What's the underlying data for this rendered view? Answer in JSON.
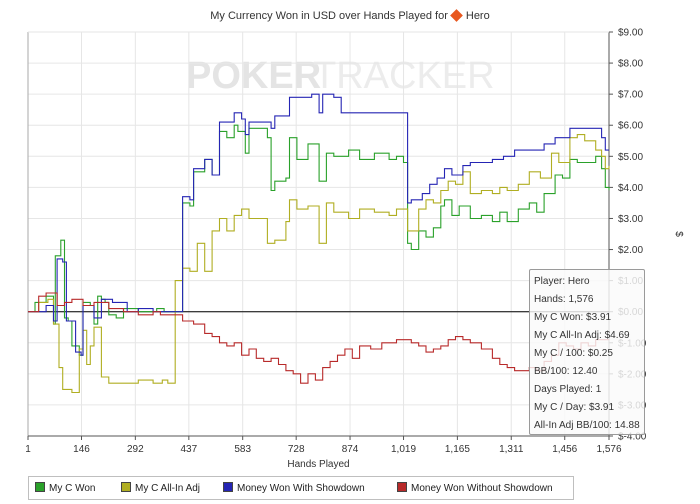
{
  "header": {
    "title_prefix": "My Currency Won in USD over Hands Played for",
    "player": "Hero"
  },
  "watermark": {
    "part1": "POKER",
    "part2": "TRACKER"
  },
  "colors": {
    "my_c_won": "#2aa12a",
    "all_in_adj": "#b0ae22",
    "with_showdown": "#2525b4",
    "without_showdown": "#b82a2a"
  },
  "legend": [
    {
      "label": "My C Won",
      "color": "#2aa12a"
    },
    {
      "label": "My C All-In Adj",
      "color": "#b0ae22"
    },
    {
      "label": "Money Won With Showdown",
      "color": "#2525b4"
    },
    {
      "label": "Money Won Without Showdown",
      "color": "#b82a2a"
    }
  ],
  "tooltip": {
    "lines": [
      "Player: Hero",
      "Hands: 1,576",
      "My C Won: $3.91",
      "My C All-In Adj: $4.69",
      "My C / 100: $0.25",
      "BB/100: 12.40",
      "Days Played: 1",
      "My C / Day: $3.91",
      "All-In Adj BB/100: 14.88"
    ]
  },
  "chart_data": {
    "type": "line",
    "title": "My Currency Won in USD over Hands Played for Hero",
    "xlabel": "Hands Played",
    "ylabel": "$",
    "xlim": [
      1,
      1576
    ],
    "ylim": [
      -4.0,
      9.0
    ],
    "x_ticks": [
      1,
      146,
      292,
      437,
      583,
      728,
      874,
      1019,
      1165,
      1311,
      1456,
      1576
    ],
    "x_tick_labels": [
      "1",
      "146",
      "292",
      "437",
      "583",
      "728",
      "874",
      "1,019",
      "1,165",
      "1,311",
      "1,456",
      "1,576"
    ],
    "y_ticks": [
      9,
      8,
      7,
      6,
      5,
      4,
      3,
      2,
      1,
      0,
      -1,
      -2,
      -3,
      -4
    ],
    "y_tick_labels": [
      "$9.00",
      "$8.00",
      "$7.00",
      "$6.00",
      "$5.00",
      "$4.00",
      "$3.00",
      "$2.00",
      "$1.00",
      "$0.00",
      "$-1.00",
      "$-2.00",
      "$-3.00",
      "$-4.00"
    ],
    "grid": true,
    "legend_position": "bottom",
    "series": [
      {
        "name": "My C Won",
        "color": "#2aa12a",
        "points": [
          [
            1,
            0
          ],
          [
            20,
            0.3
          ],
          [
            50,
            0.5
          ],
          [
            70,
            -0.4
          ],
          [
            75,
            1.8
          ],
          [
            90,
            2.3
          ],
          [
            100,
            -0.2
          ],
          [
            110,
            -0.3
          ],
          [
            120,
            -1.1
          ],
          [
            140,
            -1.4
          ],
          [
            150,
            0.3
          ],
          [
            170,
            0.2
          ],
          [
            180,
            -0.4
          ],
          [
            190,
            0.5
          ],
          [
            200,
            0.4
          ],
          [
            210,
            0.3
          ],
          [
            220,
            -0.1
          ],
          [
            240,
            -0.2
          ],
          [
            260,
            0.1
          ],
          [
            300,
            0
          ],
          [
            340,
            0
          ],
          [
            350,
            0.1
          ],
          [
            370,
            0
          ],
          [
            380,
            0
          ],
          [
            420,
            3.5
          ],
          [
            440,
            3.4
          ],
          [
            450,
            4.5
          ],
          [
            480,
            4.9
          ],
          [
            500,
            4.4
          ],
          [
            520,
            5.8
          ],
          [
            540,
            5.6
          ],
          [
            560,
            6.0
          ],
          [
            570,
            5.8
          ],
          [
            590,
            5.1
          ],
          [
            600,
            5.9
          ],
          [
            650,
            5.6
          ],
          [
            660,
            3.9
          ],
          [
            670,
            4.2
          ],
          [
            700,
            4.3
          ],
          [
            710,
            5.6
          ],
          [
            730,
            4.9
          ],
          [
            760,
            5.4
          ],
          [
            790,
            4.2
          ],
          [
            810,
            5.1
          ],
          [
            830,
            5.0
          ],
          [
            870,
            5.2
          ],
          [
            900,
            4.9
          ],
          [
            940,
            5.1
          ],
          [
            980,
            4.9
          ],
          [
            1000,
            5.0
          ],
          [
            1019,
            4.8
          ],
          [
            1030,
            2.2
          ],
          [
            1040,
            2.0
          ],
          [
            1060,
            2.6
          ],
          [
            1080,
            2.4
          ],
          [
            1100,
            2.7
          ],
          [
            1120,
            3.4
          ],
          [
            1130,
            3.6
          ],
          [
            1150,
            3.1
          ],
          [
            1170,
            3.4
          ],
          [
            1200,
            3.0
          ],
          [
            1230,
            3.1
          ],
          [
            1260,
            2.9
          ],
          [
            1280,
            3.2
          ],
          [
            1300,
            2.9
          ],
          [
            1330,
            3.3
          ],
          [
            1360,
            3.5
          ],
          [
            1380,
            3.2
          ],
          [
            1400,
            3.8
          ],
          [
            1430,
            4.4
          ],
          [
            1450,
            4.3
          ],
          [
            1470,
            4.9
          ],
          [
            1490,
            4.8
          ],
          [
            1520,
            4.8
          ],
          [
            1540,
            5.0
          ],
          [
            1556,
            4.6
          ],
          [
            1566,
            4.0
          ],
          [
            1576,
            3.91
          ]
        ]
      },
      {
        "name": "My C All-In Adj",
        "color": "#b0ae22",
        "points": [
          [
            1,
            0
          ],
          [
            30,
            0.3
          ],
          [
            55,
            0.4
          ],
          [
            70,
            -0.4
          ],
          [
            85,
            -1.8
          ],
          [
            95,
            -2.5
          ],
          [
            120,
            -2.6
          ],
          [
            140,
            -1.2
          ],
          [
            150,
            -0.6
          ],
          [
            160,
            -1.7
          ],
          [
            170,
            -1.1
          ],
          [
            180,
            -0.5
          ],
          [
            200,
            -2.1
          ],
          [
            220,
            -2.3
          ],
          [
            260,
            -2.3
          ],
          [
            300,
            -2.2
          ],
          [
            340,
            -2.3
          ],
          [
            365,
            -2.2
          ],
          [
            380,
            -2.3
          ],
          [
            400,
            1.0
          ],
          [
            420,
            1.4
          ],
          [
            440,
            1.3
          ],
          [
            460,
            2.2
          ],
          [
            480,
            1.3
          ],
          [
            500,
            2.6
          ],
          [
            520,
            3.0
          ],
          [
            540,
            2.6
          ],
          [
            560,
            3.1
          ],
          [
            580,
            3.3
          ],
          [
            600,
            3.0
          ],
          [
            630,
            3.0
          ],
          [
            650,
            2.2
          ],
          [
            670,
            2.3
          ],
          [
            700,
            2.9
          ],
          [
            710,
            3.6
          ],
          [
            730,
            3.3
          ],
          [
            760,
            3.4
          ],
          [
            790,
            2.2
          ],
          [
            810,
            3.5
          ],
          [
            830,
            3.2
          ],
          [
            870,
            3.0
          ],
          [
            900,
            3.3
          ],
          [
            940,
            3.2
          ],
          [
            980,
            3.1
          ],
          [
            1000,
            3.3
          ],
          [
            1019,
            3.3
          ],
          [
            1030,
            2.6
          ],
          [
            1040,
            2.6
          ],
          [
            1060,
            3.3
          ],
          [
            1080,
            3.6
          ],
          [
            1100,
            3.5
          ],
          [
            1120,
            3.9
          ],
          [
            1140,
            4.2
          ],
          [
            1160,
            4.1
          ],
          [
            1180,
            4.5
          ],
          [
            1200,
            3.8
          ],
          [
            1230,
            3.9
          ],
          [
            1260,
            3.8
          ],
          [
            1280,
            4.0
          ],
          [
            1300,
            3.9
          ],
          [
            1330,
            4.1
          ],
          [
            1360,
            4.5
          ],
          [
            1390,
            4.3
          ],
          [
            1420,
            5.1
          ],
          [
            1440,
            4.8
          ],
          [
            1470,
            5.6
          ],
          [
            1490,
            5.7
          ],
          [
            1510,
            5.5
          ],
          [
            1540,
            5.2
          ],
          [
            1556,
            5.0
          ],
          [
            1566,
            4.6
          ],
          [
            1576,
            4.69
          ]
        ]
      },
      {
        "name": "Money Won With Showdown",
        "color": "#2525b4",
        "points": [
          [
            1,
            0
          ],
          [
            50,
            0.2
          ],
          [
            70,
            -0.3
          ],
          [
            80,
            1.7
          ],
          [
            95,
            1.6
          ],
          [
            105,
            -0.3
          ],
          [
            130,
            -1.3
          ],
          [
            145,
            -1.4
          ],
          [
            150,
            0.2
          ],
          [
            180,
            -0.2
          ],
          [
            200,
            0.4
          ],
          [
            230,
            0.3
          ],
          [
            270,
            0
          ],
          [
            300,
            0.1
          ],
          [
            340,
            0
          ],
          [
            380,
            0
          ],
          [
            420,
            3.7
          ],
          [
            440,
            3.6
          ],
          [
            450,
            4.6
          ],
          [
            480,
            4.9
          ],
          [
            500,
            4.4
          ],
          [
            520,
            6.1
          ],
          [
            540,
            6.1
          ],
          [
            560,
            6.4
          ],
          [
            580,
            6.2
          ],
          [
            590,
            5.7
          ],
          [
            600,
            6.1
          ],
          [
            640,
            6.1
          ],
          [
            660,
            5.9
          ],
          [
            670,
            6.3
          ],
          [
            700,
            6.3
          ],
          [
            710,
            6.9
          ],
          [
            750,
            6.9
          ],
          [
            770,
            7.0
          ],
          [
            790,
            6.4
          ],
          [
            800,
            7.0
          ],
          [
            830,
            6.9
          ],
          [
            850,
            6.4
          ],
          [
            900,
            6.4
          ],
          [
            960,
            6.4
          ],
          [
            1000,
            6.4
          ],
          [
            1019,
            6.4
          ],
          [
            1030,
            3.5
          ],
          [
            1040,
            3.6
          ],
          [
            1070,
            3.8
          ],
          [
            1090,
            4.1
          ],
          [
            1110,
            4.3
          ],
          [
            1130,
            4.6
          ],
          [
            1150,
            4.4
          ],
          [
            1180,
            4.7
          ],
          [
            1200,
            4.8
          ],
          [
            1230,
            4.8
          ],
          [
            1260,
            4.9
          ],
          [
            1290,
            5.0
          ],
          [
            1320,
            5.2
          ],
          [
            1350,
            5.2
          ],
          [
            1380,
            5.2
          ],
          [
            1400,
            5.4
          ],
          [
            1430,
            5.6
          ],
          [
            1450,
            5.6
          ],
          [
            1470,
            5.9
          ],
          [
            1500,
            5.9
          ],
          [
            1540,
            5.9
          ],
          [
            1556,
            5.6
          ],
          [
            1566,
            5.2
          ],
          [
            1576,
            5.2
          ]
        ]
      },
      {
        "name": "Money Won Without Showdown",
        "color": "#b82a2a",
        "points": [
          [
            1,
            0
          ],
          [
            30,
            0.5
          ],
          [
            50,
            0.6
          ],
          [
            80,
            0.2
          ],
          [
            100,
            0.3
          ],
          [
            120,
            0.4
          ],
          [
            150,
            0.2
          ],
          [
            180,
            0.3
          ],
          [
            220,
            0.1
          ],
          [
            260,
            0
          ],
          [
            300,
            -0.1
          ],
          [
            340,
            0
          ],
          [
            360,
            -0.1
          ],
          [
            380,
            -0.1
          ],
          [
            420,
            -0.3
          ],
          [
            450,
            -0.4
          ],
          [
            480,
            -0.7
          ],
          [
            500,
            -0.8
          ],
          [
            520,
            -1.0
          ],
          [
            540,
            -1.1
          ],
          [
            560,
            -1.0
          ],
          [
            580,
            -1.4
          ],
          [
            600,
            -1.2
          ],
          [
            620,
            -1.5
          ],
          [
            640,
            -1.6
          ],
          [
            660,
            -1.5
          ],
          [
            680,
            -1.7
          ],
          [
            700,
            -1.9
          ],
          [
            720,
            -2.0
          ],
          [
            740,
            -2.3
          ],
          [
            760,
            -2.0
          ],
          [
            780,
            -2.2
          ],
          [
            800,
            -1.8
          ],
          [
            820,
            -1.6
          ],
          [
            840,
            -1.4
          ],
          [
            860,
            -1.2
          ],
          [
            880,
            -1.5
          ],
          [
            900,
            -1.1
          ],
          [
            930,
            -1.2
          ],
          [
            960,
            -1.0
          ],
          [
            1000,
            -0.9
          ],
          [
            1019,
            -0.9
          ],
          [
            1040,
            -1.0
          ],
          [
            1060,
            -1.1
          ],
          [
            1080,
            -1.3
          ],
          [
            1100,
            -1.2
          ],
          [
            1120,
            -1.1
          ],
          [
            1140,
            -0.9
          ],
          [
            1160,
            -0.8
          ],
          [
            1180,
            -0.9
          ],
          [
            1200,
            -1.0
          ],
          [
            1230,
            -1.2
          ],
          [
            1260,
            -1.5
          ],
          [
            1280,
            -1.7
          ],
          [
            1300,
            -1.8
          ],
          [
            1320,
            -1.9
          ],
          [
            1340,
            -1.9
          ],
          [
            1360,
            -1.8
          ],
          [
            1380,
            -1.9
          ],
          [
            1400,
            -1.6
          ],
          [
            1420,
            -1.4
          ],
          [
            1440,
            -1.0
          ],
          [
            1460,
            -1.1
          ],
          [
            1480,
            -1.2
          ],
          [
            1500,
            -1.0
          ],
          [
            1520,
            -1.1
          ],
          [
            1540,
            -0.9
          ],
          [
            1556,
            -0.9
          ],
          [
            1576,
            -0.9
          ]
        ]
      }
    ]
  }
}
